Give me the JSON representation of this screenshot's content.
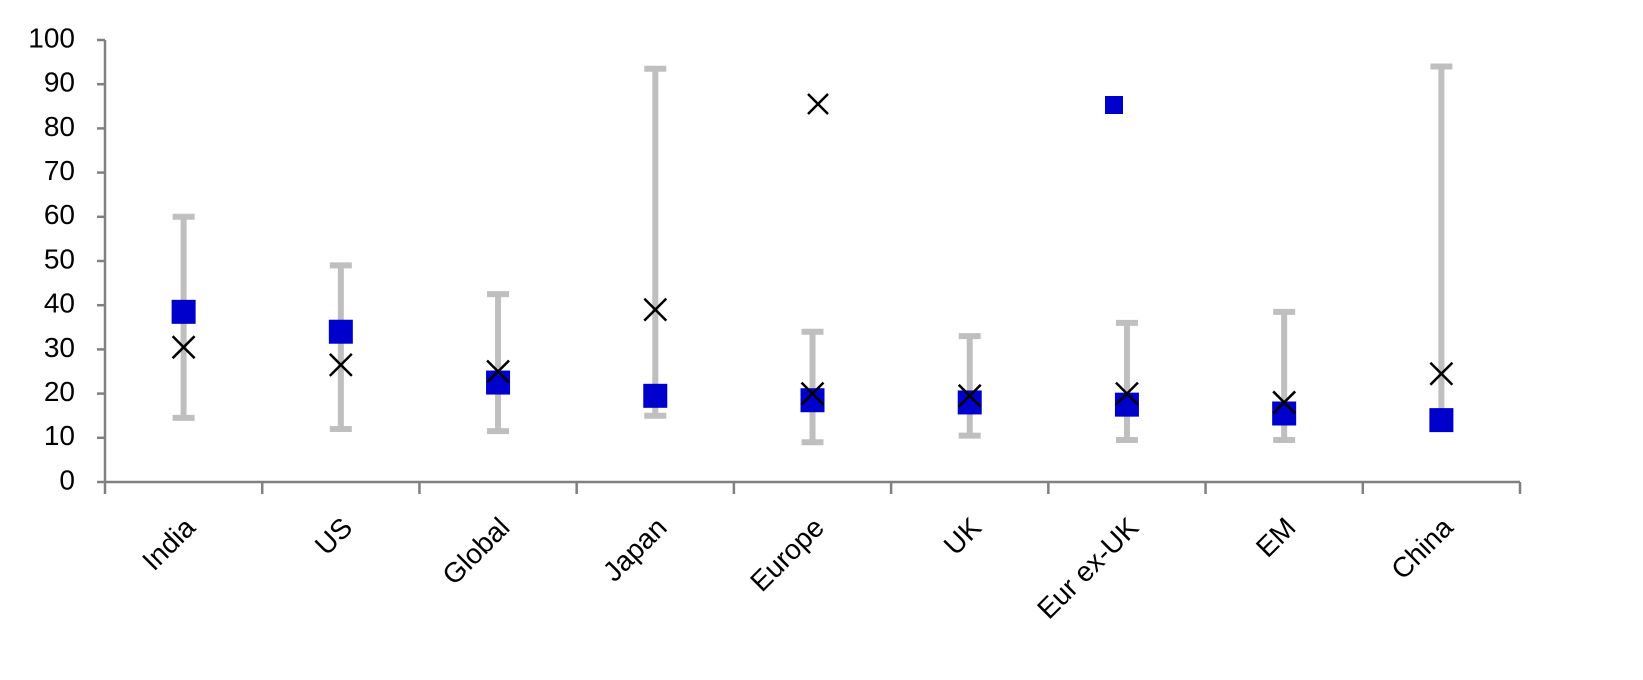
{
  "chart_data": {
    "type": "range",
    "categories": [
      "India",
      "US",
      "Global",
      "Japan",
      "Europe",
      "UK",
      "Eur ex-UK",
      "EM",
      "China"
    ],
    "range": {
      "color": "#bfbfbf",
      "low": [
        14.5,
        12,
        11.5,
        15,
        9,
        10.5,
        9.5,
        9.5,
        13
      ],
      "high": [
        60,
        49,
        42.5,
        93.5,
        34,
        33,
        36,
        38.5,
        94
      ]
    },
    "series": [
      {
        "marker": "square",
        "color": "#0000cc",
        "values": [
          38.5,
          34,
          22.5,
          19.5,
          18.5,
          18,
          17.5,
          15.5,
          14
        ]
      },
      {
        "marker": "x",
        "color": "#000000",
        "values": [
          30.5,
          26.5,
          25,
          39,
          20,
          19.5,
          20,
          18,
          24.5
        ]
      }
    ],
    "ylim": [
      0,
      100
    ],
    "yticks": [
      0,
      10,
      20,
      30,
      40,
      50,
      60,
      70,
      80,
      90,
      100
    ]
  }
}
